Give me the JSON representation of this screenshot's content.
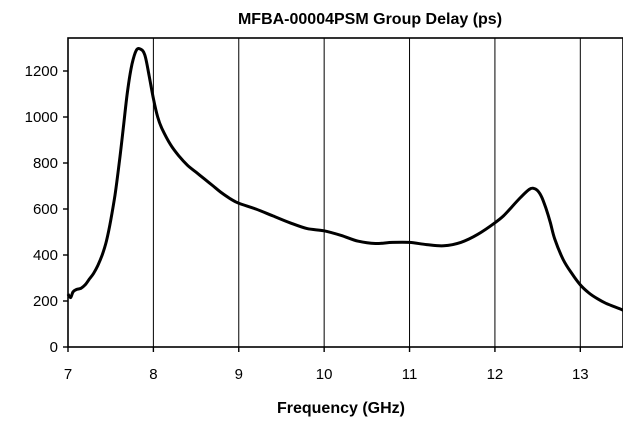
{
  "chart_data": {
    "type": "line",
    "title": "MFBA-00004PSM Group Delay (ps)",
    "xlabel": "Frequency  (GHz)",
    "ylabel": "",
    "xlim": [
      7,
      13.5
    ],
    "ylim": [
      0,
      1300
    ],
    "xticks": [
      7,
      8,
      9,
      10,
      11,
      12,
      13
    ],
    "yticks": [
      0,
      200,
      400,
      600,
      800,
      1000,
      1200
    ],
    "xtick_labels": [
      "7",
      "8",
      "9",
      "10",
      "11",
      "12",
      "13"
    ],
    "ytick_labels": [
      "0",
      "200",
      "400",
      "600",
      "800",
      "1000",
      "1200"
    ],
    "grid": "vertical",
    "legend": "none",
    "line_color": "#000000",
    "series": [
      {
        "x": [
          7.0,
          7.03,
          7.06,
          7.1,
          7.15,
          7.2,
          7.25,
          7.3,
          7.35,
          7.4,
          7.45,
          7.5,
          7.55,
          7.6,
          7.65,
          7.7,
          7.75,
          7.8,
          7.85,
          7.9,
          7.95,
          8.0,
          8.05,
          8.1,
          8.2,
          8.3,
          8.4,
          8.5,
          8.6,
          8.7,
          8.8,
          8.9,
          9.0,
          9.2,
          9.4,
          9.6,
          9.8,
          10.0,
          10.2,
          10.4,
          10.6,
          10.8,
          11.0,
          11.2,
          11.4,
          11.6,
          11.8,
          12.0,
          12.1,
          12.2,
          12.3,
          12.4,
          12.45,
          12.5,
          12.55,
          12.6,
          12.65,
          12.7,
          12.8,
          12.9,
          13.0,
          13.1,
          13.2,
          13.3,
          13.4,
          13.5
        ],
        "y": [
          230,
          215,
          240,
          250,
          255,
          270,
          295,
          320,
          355,
          400,
          460,
          550,
          660,
          800,
          960,
          1120,
          1230,
          1290,
          1295,
          1270,
          1180,
          1080,
          1000,
          950,
          880,
          830,
          790,
          760,
          730,
          700,
          670,
          645,
          625,
          600,
          570,
          540,
          515,
          505,
          485,
          460,
          450,
          455,
          455,
          445,
          440,
          455,
          490,
          540,
          570,
          610,
          650,
          685,
          690,
          680,
          650,
          600,
          540,
          470,
          380,
          320,
          270,
          235,
          210,
          190,
          175,
          160
        ]
      }
    ]
  }
}
